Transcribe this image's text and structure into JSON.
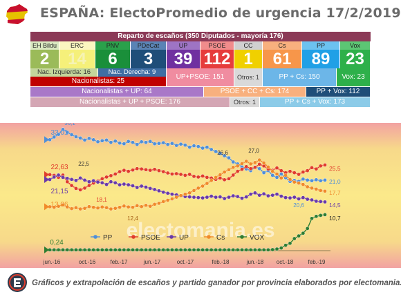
{
  "header": {
    "title": "ESPAÑA: ElectoPromedio de urgencia 17/2/2019"
  },
  "seats": {
    "title": "Reparto de escaños (350 Diputados - mayoría 176)",
    "parties": [
      {
        "label": "EH Bildu",
        "seats": "2",
        "bg": "#9bbb59",
        "labelBg": "#d9e8c0",
        "color": "#ffffff"
      },
      {
        "label": "ERC",
        "seats": "14",
        "bg": "#f5f07a",
        "labelBg": "#fbf7c0",
        "color": "#f6f3b5"
      },
      {
        "label": "PNV",
        "seats": "6",
        "bg": "#1a8f3a",
        "labelBg": "#2aa14b",
        "color": "#ffffff"
      },
      {
        "label": "PDeCat",
        "seats": "3",
        "bg": "#1f4e79",
        "labelBg": "#5a83b5",
        "color": "#ffffff"
      },
      {
        "label": "UP",
        "seats": "39",
        "bg": "#7030a0",
        "labelBg": "#9e74c4",
        "color": "#ffffff"
      },
      {
        "label": "PSOE",
        "seats": "112",
        "bg": "#e63c3c",
        "labelBg": "#f08c8c",
        "color": "#ffffff"
      },
      {
        "label": "CC",
        "seats": "1",
        "bg": "#f0d000",
        "labelBg": "#d0d0d0",
        "color": "#ffffff"
      },
      {
        "label": "Cs",
        "seats": "61",
        "bg": "#f7964a",
        "labelBg": "#f8b07e",
        "color": "#ffffff"
      },
      {
        "label": "PP",
        "seats": "89",
        "bg": "#20a0e6",
        "labelBg": "#6cc2f0",
        "color": "#ffffff"
      },
      {
        "label": "Vox",
        "seats": "23",
        "bg": "#2eb04a",
        "labelBg": "#5cc674",
        "color": "#ffffff"
      }
    ],
    "nac_izq": "Nac. Izquierda: 16",
    "nac_der": "Nac. Derecha: 9",
    "nacionalistas": "Nacionalistas: 25",
    "up_psoe": "UP+PSOE: 151",
    "otros": "Otros: 1",
    "pp_cs": "PP + Cs: 150",
    "vox": "Vox: 23",
    "nac_up": "Nacionalistas + UP: 64",
    "psoe_cc_cs": "PSOE + CC + Cs: 174",
    "pp_vox": "PP + Vox: 112",
    "nac_up_psoe": "Nacionalistas + UP + PSOE: 176",
    "otros2": "Otros: 1",
    "pp_cs_vox": "PP + Cs + Vox: 173"
  },
  "chart_data": {
    "type": "line",
    "x_ticks": [
      "jun.-16",
      "oct.-16",
      "feb.-17",
      "jun.-17",
      "oct.-17",
      "feb.-18",
      "jun.-18",
      "oct.-18",
      "feb.-19"
    ],
    "ylim": [
      0,
      38
    ],
    "series": [
      {
        "name": "PP",
        "color": "#4f8fd8",
        "start": 33.01,
        "end": 21.0,
        "points": [
          33.01,
          33.8,
          34.6,
          36.1,
          35.2,
          34.5,
          33.9,
          33.5,
          32.9,
          33.4,
          33.0,
          32.4,
          32.7,
          32.9,
          32.2,
          32.6,
          32.0,
          31.8,
          32.5,
          32.2,
          31.6,
          32.4,
          32.2,
          32.5,
          31.8,
          31.9,
          32.1,
          31.6,
          31.9,
          31.3,
          31.7,
          31.4,
          30.8,
          31.2,
          31.0,
          30.5,
          30.8,
          30.1,
          29.5,
          28.9,
          28.2,
          27.6,
          26.4,
          25.8,
          24.9,
          24.3,
          23.8,
          24.9,
          24.4,
          23.2,
          23.8,
          22.4,
          21.8,
          22.8,
          21.7,
          20.6,
          20.9,
          20.6,
          21.3,
          21.0,
          20.8,
          21.1,
          20.8,
          21.0
        ]
      },
      {
        "name": "PSOE",
        "color": "#e03c2c",
        "start": 22.63,
        "end": 25.5,
        "points": [
          22.63,
          22.4,
          21.8,
          22.5,
          20.5,
          19.4,
          18.5,
          18.1,
          18.6,
          19.4,
          20.1,
          20.7,
          21.4,
          21.9,
          22.3,
          22.8,
          23.5,
          23.9,
          23.6,
          24.0,
          24.4,
          24.3,
          24.1,
          23.9,
          24.2,
          23.8,
          23.5,
          23.1,
          22.8,
          22.9,
          22.7,
          22.4,
          22.7,
          22.1,
          21.9,
          22.2,
          21.8,
          21.6,
          21.2,
          21.6,
          21.1,
          21.4,
          22.5,
          23.6,
          24.2,
          25.0,
          24.4,
          24.8,
          25.7,
          25.2,
          24.3,
          23.9,
          24.6,
          23.8,
          23.2,
          23.6,
          23.2,
          22.7,
          23.4,
          23.8,
          24.7,
          24.3,
          25.2,
          25.5
        ]
      },
      {
        "name": "UP",
        "color": "#6a3aa8",
        "start": 21.15,
        "end": 14.5,
        "points": [
          21.15,
          21.9,
          22.5,
          21.8,
          21.5,
          21.2,
          20.9,
          21.6,
          21.0,
          20.5,
          20.8,
          20.4,
          20.2,
          19.7,
          20.5,
          20.2,
          19.6,
          19.8,
          19.6,
          19.3,
          18.8,
          19.2,
          18.9,
          18.5,
          18.2,
          17.8,
          17.4,
          17.1,
          16.8,
          16.6,
          16.3,
          16.1,
          16.0,
          15.9,
          15.8,
          15.7,
          15.9,
          16.2,
          15.9,
          16.0,
          15.5,
          15.9,
          16.3,
          16.1,
          15.6,
          16.0,
          16.8,
          17.2,
          16.5,
          16.9,
          16.3,
          16.5,
          16.8,
          16.2,
          15.8,
          15.7,
          15.9,
          15.4,
          15.8,
          15.3,
          15.1,
          14.7,
          14.6,
          14.5
        ]
      },
      {
        "name": "Cs",
        "color": "#f08a2a",
        "start": 13.06,
        "end": 17.7,
        "points": [
          13.06,
          12.9,
          13.2,
          13.6,
          13.0,
          12.5,
          12.8,
          12.4,
          12.6,
          13.1,
          12.9,
          12.7,
          13.0,
          12.8,
          12.4,
          12.6,
          12.9,
          13.3,
          13.0,
          12.9,
          13.4,
          13.1,
          13.5,
          13.2,
          13.8,
          14.1,
          14.6,
          15.0,
          15.4,
          15.9,
          16.4,
          16.8,
          17.2,
          17.9,
          18.6,
          19.2,
          20.0,
          20.9,
          21.8,
          22.6,
          23.4,
          24.1,
          24.8,
          25.2,
          25.9,
          26.6,
          25.8,
          26.2,
          27.0,
          26.1,
          24.9,
          23.6,
          22.8,
          21.6,
          22.4,
          21.2,
          20.4,
          20.1,
          19.7,
          19.0,
          18.6,
          18.3,
          17.9,
          17.7
        ]
      },
      {
        "name": "VOX",
        "color": "#2e7d32",
        "start": 0.24,
        "end": 10.7,
        "points": [
          0.24,
          0.24,
          0.24,
          0.24,
          0.24,
          0.24,
          0.24,
          0.24,
          0.24,
          0.24,
          0.24,
          0.24,
          0.24,
          0.24,
          0.24,
          0.24,
          0.24,
          0.24,
          0.24,
          0.24,
          0.24,
          0.24,
          0.24,
          0.24,
          0.24,
          0.24,
          0.24,
          0.24,
          0.24,
          0.24,
          0.24,
          0.24,
          0.24,
          0.24,
          0.24,
          0.24,
          0.24,
          0.24,
          0.24,
          0.24,
          0.24,
          0.24,
          0.24,
          0.24,
          0.24,
          0.24,
          0.24,
          0.24,
          0.24,
          0.24,
          0.24,
          0.3,
          0.5,
          0.8,
          1.6,
          2.2,
          3.6,
          4.4,
          5.2,
          6.6,
          9.6,
          10.2,
          10.5,
          10.7
        ]
      }
    ],
    "start_labels": [
      "33,01",
      "22,63",
      "21,15",
      "13,06",
      "0,24"
    ],
    "end_labels": [
      "21,0",
      "25,5",
      "14,5",
      "17,7",
      "10,7"
    ],
    "annotations": [
      "36,1",
      "22,5",
      "18,1",
      "12,4",
      "26,6",
      "27,0",
      "20,6"
    ],
    "watermark": "electomania.es"
  },
  "footer": {
    "text": "Gráficos y extrapolación de escaños y partido ganador por provincia elaborados por electomania.es"
  }
}
